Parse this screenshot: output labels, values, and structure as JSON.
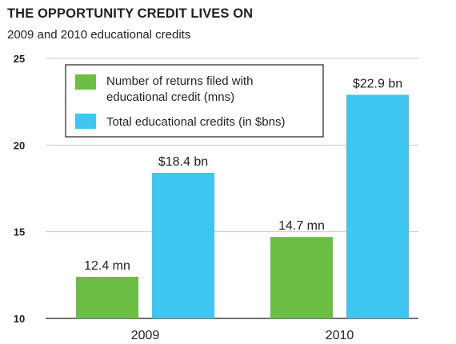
{
  "chart_data": {
    "type": "bar",
    "title": "THE OPPORTUNITY CREDIT LIVES ON",
    "subtitle": "2009 and 2010 educational credits",
    "categories": [
      "2009",
      "2010"
    ],
    "series": [
      {
        "name": [
          "Number of returns filed with",
          "educational credit (mns)"
        ],
        "color": "#6cbe45",
        "values": [
          12.4,
          14.7
        ],
        "labels": [
          "12.4 mn",
          "14.7 mn"
        ]
      },
      {
        "name": [
          "Total educational credits (in $bns)"
        ],
        "color": "#3ec6f1",
        "values": [
          18.4,
          22.9
        ],
        "labels": [
          "$18.4 bn",
          "$22.9 bn"
        ]
      }
    ],
    "ylim": [
      10,
      25
    ],
    "yticks": [
      10,
      15,
      20,
      25
    ],
    "ytick_labels": [
      "10",
      "15",
      "20",
      "25"
    ],
    "grid": true,
    "legend_position": "top-left"
  }
}
